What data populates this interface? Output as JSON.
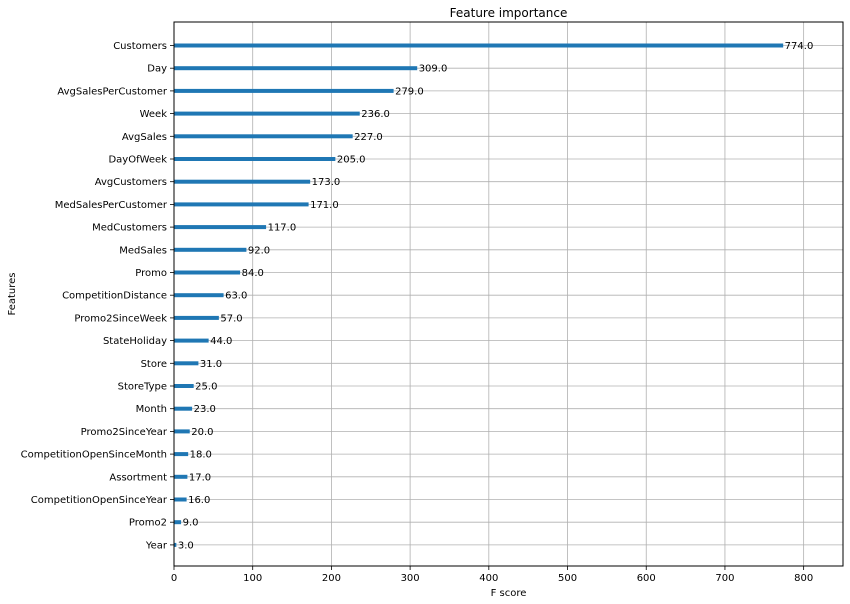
{
  "chart_data": {
    "type": "bar",
    "orientation": "horizontal",
    "title": "Feature importance",
    "xlabel": "F score",
    "ylabel": "Features",
    "xlim": [
      0,
      850
    ],
    "xticks": [
      0,
      100,
      200,
      300,
      400,
      500,
      600,
      700,
      800
    ],
    "grid": true,
    "bar_color": "#1f77b4",
    "categories": [
      "Customers",
      "Day",
      "AvgSalesPerCustomer",
      "Week",
      "AvgSales",
      "DayOfWeek",
      "AvgCustomers",
      "MedSalesPerCustomer",
      "MedCustomers",
      "MedSales",
      "Promo",
      "CompetitionDistance",
      "Promo2SinceWeek",
      "StateHoliday",
      "Store",
      "StoreType",
      "Month",
      "Promo2SinceYear",
      "CompetitionOpenSinceMonth",
      "Assortment",
      "CompetitionOpenSinceYear",
      "Promo2",
      "Year"
    ],
    "values": [
      774,
      309,
      279,
      236,
      227,
      205,
      173,
      171,
      117,
      92,
      84,
      63,
      57,
      44,
      31,
      25,
      23,
      20,
      18,
      17,
      16,
      9,
      3
    ],
    "value_labels": [
      "774.0",
      "309.0",
      "279.0",
      "236.0",
      "227.0",
      "205.0",
      "173.0",
      "171.0",
      "117.0",
      "92.0",
      "84.0",
      "63.0",
      "57.0",
      "44.0",
      "31.0",
      "25.0",
      "23.0",
      "20.0",
      "18.0",
      "17.0",
      "16.0",
      "9.0",
      "3.0"
    ]
  }
}
